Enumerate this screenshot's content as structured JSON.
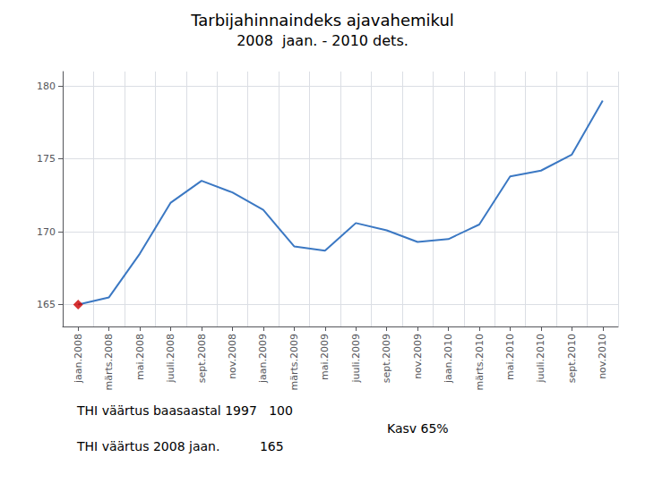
{
  "chart_data": {
    "type": "line",
    "title": "Tarbijahinnaindeks ajavahemikul",
    "subtitle": "2008  jaan. - 2010 dets.",
    "categories": [
      "jaan.2008",
      "märts.2008",
      "mai.2008",
      "juuli.2008",
      "sept.2008",
      "nov.2008",
      "jaan.2009",
      "märts.2009",
      "mai.2009",
      "juuli.2009",
      "sept.2009",
      "nov.2009",
      "jaan.2010",
      "märts.2010",
      "mai.2010",
      "juuli.2010",
      "sept.2010",
      "nov.2010"
    ],
    "series": [
      {
        "type": "line",
        "color": "#3b78c3",
        "values": [
          165.0,
          165.5,
          168.5,
          172.0,
          173.5,
          172.7,
          171.5,
          169.0,
          168.7,
          170.6,
          170.1,
          169.3,
          169.5,
          170.5,
          173.8,
          174.2,
          175.3,
          179.0
        ]
      },
      {
        "type": "scatter",
        "marker": "diamond",
        "color": "#cc0000",
        "values": [
          165.0,
          null,
          null,
          null,
          null,
          null,
          null,
          null,
          null,
          null,
          null,
          null,
          null,
          null,
          null,
          null,
          null,
          null
        ]
      }
    ],
    "ylim": [
      163.5,
      181.0
    ],
    "yticks": [
      165,
      170,
      175,
      180
    ],
    "grid": true,
    "annotations": [
      "THI väärtus baasaastal 1997   100",
      "THI väärtus 2008 jaan.          165",
      "Kasv 65%"
    ]
  }
}
